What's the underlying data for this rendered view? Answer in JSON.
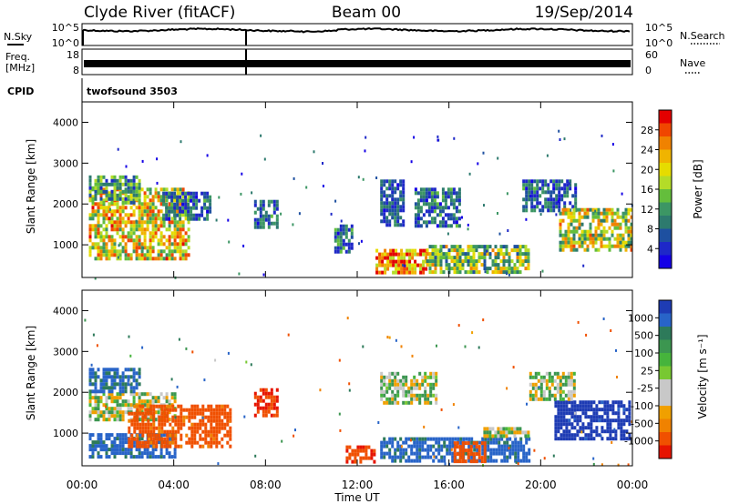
{
  "header": {
    "station": "Clyde River (fitACF)",
    "beam": "Beam 00",
    "date": "19/Sep/2014"
  },
  "top_panels": {
    "nsky": {
      "label": "N.Sky",
      "ticks": [
        "10^5",
        "10^0"
      ]
    },
    "nsearch": {
      "label": "N.Search",
      "ticks": [
        "10^5",
        "10^0"
      ]
    },
    "freq": {
      "label_line1": "Freq.",
      "label_line2": "[MHz]",
      "ticks": [
        "18",
        "8"
      ]
    },
    "nave": {
      "label": "Nave",
      "ticks": [
        "60",
        "0"
      ]
    },
    "cpid": {
      "label": "CPID",
      "value": "twofsound 3503"
    }
  },
  "chart_data": [
    {
      "type": "heatmap",
      "panel": "power",
      "ylabel": "Slant Range [km]",
      "xlabel": "",
      "yticks": [
        1000,
        2000,
        3000,
        4000
      ],
      "ylim": [
        200,
        4500
      ],
      "colorbar": {
        "label": "Power [dB]",
        "ticks": [
          "28",
          "24",
          "20",
          "16",
          "12",
          "8",
          "4"
        ],
        "colors": [
          "#e30000",
          "#f04600",
          "#f08200",
          "#f0b400",
          "#e6dc00",
          "#b4dc28",
          "#64be3c",
          "#3c9664",
          "#2d7a6e",
          "#1e50a0",
          "#1e28c8",
          "#1400e6"
        ]
      },
      "regions": [
        {
          "x": [
            0.3,
            4.6
          ],
          "y": [
            700,
            2400
          ],
          "v": [
            12,
            28
          ]
        },
        {
          "x": [
            0.3,
            2.5
          ],
          "y": [
            2000,
            2700
          ],
          "v": [
            6,
            18
          ]
        },
        {
          "x": [
            3.5,
            5.6
          ],
          "y": [
            1600,
            2300
          ],
          "v": [
            4,
            14
          ]
        },
        {
          "x": [
            7.5,
            8.5
          ],
          "y": [
            1400,
            2100
          ],
          "v": [
            4,
            14
          ]
        },
        {
          "x": [
            11.0,
            11.8
          ],
          "y": [
            800,
            1500
          ],
          "v": [
            4,
            16
          ]
        },
        {
          "x": [
            13.0,
            14.0
          ],
          "y": [
            1500,
            2600
          ],
          "v": [
            4,
            12
          ]
        },
        {
          "x": [
            12.8,
            15.0
          ],
          "y": [
            300,
            900
          ],
          "v": [
            16,
            30
          ]
        },
        {
          "x": [
            15.0,
            19.5
          ],
          "y": [
            300,
            1000
          ],
          "v": [
            8,
            24
          ]
        },
        {
          "x": [
            14.5,
            16.5
          ],
          "y": [
            1500,
            2400
          ],
          "v": [
            4,
            14
          ]
        },
        {
          "x": [
            19.2,
            21.5
          ],
          "y": [
            1800,
            2600
          ],
          "v": [
            4,
            14
          ]
        },
        {
          "x": [
            20.8,
            23.9
          ],
          "y": [
            900,
            1900
          ],
          "v": [
            10,
            26
          ]
        }
      ]
    },
    {
      "type": "heatmap",
      "panel": "velocity",
      "ylabel": "Slant Range [km]",
      "xlabel": "Time UT",
      "xticks": [
        "00:00",
        "04:00",
        "08:00",
        "12:00",
        "16:00",
        "20:00",
        "00:00"
      ],
      "yticks": [
        1000,
        2000,
        3000,
        4000
      ],
      "ylim": [
        200,
        4500
      ],
      "colorbar": {
        "label": "Velocity [m s⁻¹]",
        "ticks": [
          "1000",
          "500",
          "100",
          "25",
          "-25",
          "-100",
          "-500",
          "-1000"
        ],
        "colors": [
          "#1e3cb4",
          "#2864c8",
          "#2d7a5a",
          "#3c9650",
          "#46b43c",
          "#78c832",
          "#c8c8c8",
          "#c8c8c8",
          "#f0a000",
          "#f08200",
          "#f05000",
          "#e61400"
        ]
      },
      "regions": [
        {
          "x": [
            0.3,
            4.0
          ],
          "y": [
            400,
            1000
          ],
          "v": [
            50,
            300
          ]
        },
        {
          "x": [
            0.3,
            4.0
          ],
          "y": [
            1300,
            2000
          ],
          "v": [
            -20,
            20
          ]
        },
        {
          "x": [
            2.0,
            6.5
          ],
          "y": [
            700,
            1700
          ],
          "v": [
            -300,
            -80
          ]
        },
        {
          "x": [
            0.3,
            2.5
          ],
          "y": [
            2000,
            2600
          ],
          "v": [
            50,
            200
          ]
        },
        {
          "x": [
            7.5,
            8.5
          ],
          "y": [
            1400,
            2100
          ],
          "v": [
            -500,
            -100
          ]
        },
        {
          "x": [
            11.5,
            12.8
          ],
          "y": [
            300,
            700
          ],
          "v": [
            -400,
            -100
          ]
        },
        {
          "x": [
            13.0,
            19.5
          ],
          "y": [
            300,
            900
          ],
          "v": [
            50,
            300
          ]
        },
        {
          "x": [
            16.2,
            17.6
          ],
          "y": [
            300,
            800
          ],
          "v": [
            -300,
            -100
          ]
        },
        {
          "x": [
            17.5,
            19.5
          ],
          "y": [
            900,
            1150
          ],
          "v": [
            -20,
            20
          ]
        },
        {
          "x": [
            13.0,
            15.5
          ],
          "y": [
            1700,
            2500
          ],
          "v": [
            -20,
            20
          ]
        },
        {
          "x": [
            20.6,
            23.9
          ],
          "y": [
            900,
            1800
          ],
          "v": [
            300,
            1000
          ]
        },
        {
          "x": [
            19.5,
            21.5
          ],
          "y": [
            1800,
            2500
          ],
          "v": [
            -20,
            20
          ]
        }
      ]
    }
  ]
}
